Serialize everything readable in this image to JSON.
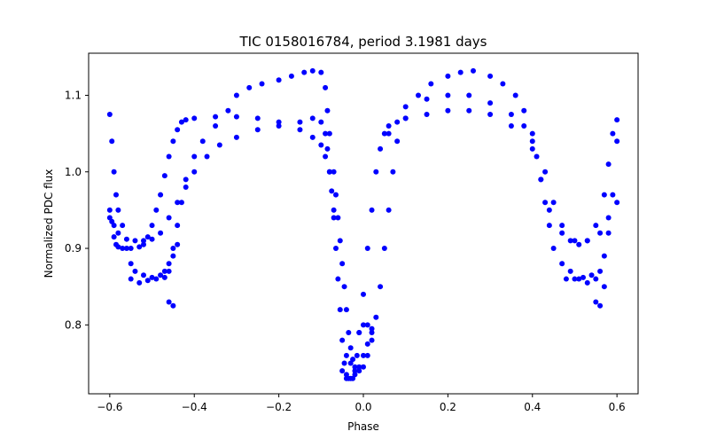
{
  "chart_data": {
    "type": "scatter",
    "title": "TIC 0158016784, period 3.1981 days",
    "xlabel": "Phase",
    "ylabel": "Normalized PDC flux",
    "xlim": [
      -0.65,
      0.65
    ],
    "ylim": [
      0.71,
      1.155
    ],
    "xticks": [
      {
        "value": -0.6,
        "label": "−0.6"
      },
      {
        "value": -0.4,
        "label": "−0.4"
      },
      {
        "value": -0.2,
        "label": "−0.2"
      },
      {
        "value": 0.0,
        "label": "0.0"
      },
      {
        "value": 0.2,
        "label": "0.2"
      },
      {
        "value": 0.4,
        "label": "0.4"
      },
      {
        "value": 0.6,
        "label": "0.6"
      }
    ],
    "yticks": [
      {
        "value": 0.8,
        "label": "0.8"
      },
      {
        "value": 0.9,
        "label": "0.9"
      },
      {
        "value": 1.0,
        "label": "1.0"
      },
      {
        "value": 1.1,
        "label": "1.1"
      }
    ],
    "grid": false,
    "marker_color": "#0000ff",
    "series": [
      {
        "points": [
          [
            -0.6,
            0.95
          ],
          [
            -0.595,
            0.935
          ],
          [
            -0.59,
            0.915
          ],
          [
            -0.585,
            0.905
          ],
          [
            -0.58,
            0.902
          ],
          [
            -0.57,
            0.9
          ],
          [
            -0.55,
            0.9
          ],
          [
            -0.53,
            0.902
          ],
          [
            -0.52,
            0.905
          ],
          [
            -0.51,
            0.915
          ],
          [
            -0.5,
            0.93
          ],
          [
            -0.49,
            0.95
          ],
          [
            -0.48,
            0.97
          ],
          [
            -0.47,
            0.995
          ],
          [
            -0.46,
            1.02
          ],
          [
            -0.45,
            1.04
          ],
          [
            -0.44,
            1.055
          ],
          [
            -0.43,
            1.065
          ],
          [
            -0.42,
            1.068
          ],
          [
            -0.4,
            1.07
          ],
          [
            -0.35,
            1.072
          ],
          [
            -0.3,
            1.072
          ],
          [
            -0.25,
            1.07
          ],
          [
            -0.2,
            1.065
          ],
          [
            -0.15,
            1.055
          ],
          [
            -0.12,
            1.045
          ],
          [
            -0.1,
            1.035
          ],
          [
            -0.09,
            1.02
          ],
          [
            -0.08,
            1.0
          ],
          [
            -0.075,
            0.975
          ],
          [
            -0.07,
            0.94
          ],
          [
            -0.065,
            0.9
          ],
          [
            -0.06,
            0.86
          ],
          [
            -0.055,
            0.82
          ],
          [
            -0.05,
            0.78
          ],
          [
            -0.045,
            0.75
          ],
          [
            -0.04,
            0.735
          ],
          [
            -0.035,
            0.73
          ],
          [
            -0.025,
            0.73
          ],
          [
            -0.02,
            0.74
          ],
          [
            -0.015,
            0.76
          ],
          [
            -0.01,
            0.79
          ],
          [
            0.0,
            0.84
          ],
          [
            0.01,
            0.9
          ],
          [
            0.02,
            0.95
          ],
          [
            0.03,
            1.0
          ],
          [
            0.04,
            1.03
          ],
          [
            0.05,
            1.05
          ],
          [
            0.06,
            1.06
          ],
          [
            0.08,
            1.065
          ],
          [
            0.1,
            1.07
          ],
          [
            0.15,
            1.075
          ],
          [
            0.2,
            1.08
          ],
          [
            0.25,
            1.08
          ],
          [
            0.3,
            1.075
          ],
          [
            0.35,
            1.06
          ],
          [
            0.4,
            1.04
          ],
          [
            0.43,
            1.0
          ],
          [
            0.45,
            0.96
          ],
          [
            0.47,
            0.93
          ],
          [
            0.49,
            0.91
          ],
          [
            0.51,
            0.905
          ],
          [
            0.53,
            0.91
          ],
          [
            0.55,
            0.93
          ],
          [
            0.57,
            0.97
          ],
          [
            0.58,
            1.01
          ],
          [
            0.59,
            1.05
          ],
          [
            0.6,
            1.068
          ]
        ]
      },
      {
        "points": [
          [
            -0.6,
            0.94
          ],
          [
            -0.59,
            0.93
          ],
          [
            -0.58,
            0.92
          ],
          [
            -0.56,
            0.912
          ],
          [
            -0.54,
            0.91
          ],
          [
            -0.52,
            0.91
          ],
          [
            -0.5,
            0.912
          ],
          [
            -0.48,
            0.92
          ],
          [
            -0.46,
            0.94
          ],
          [
            -0.44,
            0.96
          ],
          [
            -0.42,
            0.98
          ],
          [
            -0.4,
            1.0
          ],
          [
            -0.37,
            1.02
          ],
          [
            -0.34,
            1.035
          ],
          [
            -0.3,
            1.045
          ],
          [
            -0.25,
            1.055
          ],
          [
            -0.2,
            1.06
          ],
          [
            -0.15,
            1.065
          ],
          [
            -0.12,
            1.07
          ],
          [
            -0.1,
            1.065
          ],
          [
            -0.09,
            1.05
          ],
          [
            -0.085,
            1.03
          ],
          [
            -0.08,
            1.0
          ],
          [
            -0.07,
            0.95
          ],
          [
            0.06,
            1.05
          ],
          [
            0.1,
            1.085
          ],
          [
            0.15,
            1.095
          ],
          [
            0.2,
            1.1
          ],
          [
            0.25,
            1.1
          ],
          [
            0.3,
            1.09
          ],
          [
            0.35,
            1.075
          ],
          [
            0.38,
            1.06
          ],
          [
            0.4,
            1.03
          ],
          [
            0.42,
            0.99
          ],
          [
            0.44,
            0.95
          ],
          [
            0.47,
            0.92
          ],
          [
            0.5,
            0.91
          ],
          [
            0.53,
            0.91
          ],
          [
            0.56,
            0.92
          ],
          [
            0.58,
            0.94
          ],
          [
            0.6,
            0.96
          ]
        ]
      },
      {
        "points": [
          [
            -0.6,
            1.075
          ],
          [
            -0.595,
            1.04
          ],
          [
            -0.59,
            1.0
          ],
          [
            -0.585,
            0.97
          ],
          [
            -0.58,
            0.95
          ],
          [
            -0.57,
            0.93
          ],
          [
            -0.56,
            0.9
          ],
          [
            -0.55,
            0.88
          ],
          [
            -0.54,
            0.87
          ],
          [
            -0.52,
            0.865
          ],
          [
            -0.5,
            0.862
          ],
          [
            -0.48,
            0.865
          ],
          [
            -0.47,
            0.87
          ],
          [
            -0.46,
            0.88
          ],
          [
            -0.45,
            0.9
          ],
          [
            -0.44,
            0.93
          ],
          [
            -0.43,
            0.96
          ],
          [
            -0.42,
            0.99
          ],
          [
            -0.4,
            1.02
          ],
          [
            -0.38,
            1.04
          ],
          [
            -0.35,
            1.06
          ],
          [
            -0.32,
            1.08
          ],
          [
            -0.3,
            1.1
          ],
          [
            -0.27,
            1.11
          ],
          [
            -0.24,
            1.115
          ],
          [
            -0.2,
            1.12
          ],
          [
            -0.17,
            1.125
          ],
          [
            -0.14,
            1.13
          ],
          [
            -0.12,
            1.132
          ],
          [
            -0.1,
            1.13
          ],
          [
            -0.09,
            1.11
          ],
          [
            -0.085,
            1.08
          ],
          [
            -0.08,
            1.05
          ],
          [
            -0.07,
            1.0
          ],
          [
            -0.065,
            0.97
          ],
          [
            -0.06,
            0.94
          ],
          [
            -0.055,
            0.91
          ],
          [
            -0.05,
            0.88
          ],
          [
            -0.045,
            0.85
          ],
          [
            -0.04,
            0.82
          ],
          [
            -0.035,
            0.79
          ],
          [
            -0.03,
            0.77
          ],
          [
            -0.025,
            0.755
          ],
          [
            -0.02,
            0.745
          ],
          [
            -0.01,
            0.74
          ],
          [
            0.0,
            0.745
          ],
          [
            0.01,
            0.76
          ],
          [
            0.02,
            0.78
          ],
          [
            0.03,
            0.81
          ],
          [
            0.04,
            0.85
          ],
          [
            0.05,
            0.9
          ],
          [
            0.06,
            0.95
          ],
          [
            0.07,
            1.0
          ],
          [
            0.08,
            1.04
          ],
          [
            0.1,
            1.07
          ],
          [
            0.13,
            1.1
          ],
          [
            0.16,
            1.115
          ],
          [
            0.2,
            1.125
          ],
          [
            0.23,
            1.13
          ],
          [
            0.26,
            1.132
          ],
          [
            0.3,
            1.125
          ],
          [
            0.33,
            1.115
          ],
          [
            0.36,
            1.1
          ],
          [
            0.38,
            1.08
          ],
          [
            0.4,
            1.05
          ],
          [
            0.41,
            1.02
          ],
          [
            0.42,
            0.99
          ],
          [
            0.43,
            0.96
          ],
          [
            0.44,
            0.93
          ],
          [
            0.45,
            0.9
          ],
          [
            0.47,
            0.88
          ],
          [
            0.49,
            0.87
          ],
          [
            0.51,
            0.86
          ],
          [
            0.53,
            0.855
          ],
          [
            0.55,
            0.86
          ],
          [
            0.56,
            0.87
          ],
          [
            0.57,
            0.89
          ],
          [
            0.58,
            0.92
          ],
          [
            0.59,
            0.97
          ],
          [
            0.6,
            1.04
          ]
        ]
      },
      {
        "points": [
          [
            -0.46,
            0.83
          ],
          [
            -0.45,
            0.825
          ],
          [
            -0.55,
            0.86
          ],
          [
            -0.53,
            0.855
          ],
          [
            -0.51,
            0.858
          ],
          [
            -0.49,
            0.86
          ],
          [
            -0.47,
            0.862
          ],
          [
            -0.46,
            0.87
          ],
          [
            -0.45,
            0.89
          ],
          [
            -0.44,
            0.905
          ],
          [
            0.48,
            0.86
          ],
          [
            0.5,
            0.86
          ],
          [
            0.52,
            0.862
          ],
          [
            0.54,
            0.865
          ],
          [
            0.55,
            0.83
          ],
          [
            0.56,
            0.825
          ],
          [
            0.57,
            0.85
          ],
          [
            -0.05,
            0.74
          ],
          [
            -0.04,
            0.73
          ],
          [
            -0.03,
            0.73
          ],
          [
            -0.02,
            0.735
          ],
          [
            -0.01,
            0.745
          ],
          [
            0.0,
            0.76
          ],
          [
            0.01,
            0.775
          ],
          [
            0.02,
            0.79
          ],
          [
            -0.01,
            0.79
          ],
          [
            0.0,
            0.8
          ],
          [
            0.01,
            0.8
          ],
          [
            0.02,
            0.795
          ],
          [
            -0.04,
            0.76
          ],
          [
            -0.03,
            0.75
          ]
        ]
      }
    ]
  }
}
